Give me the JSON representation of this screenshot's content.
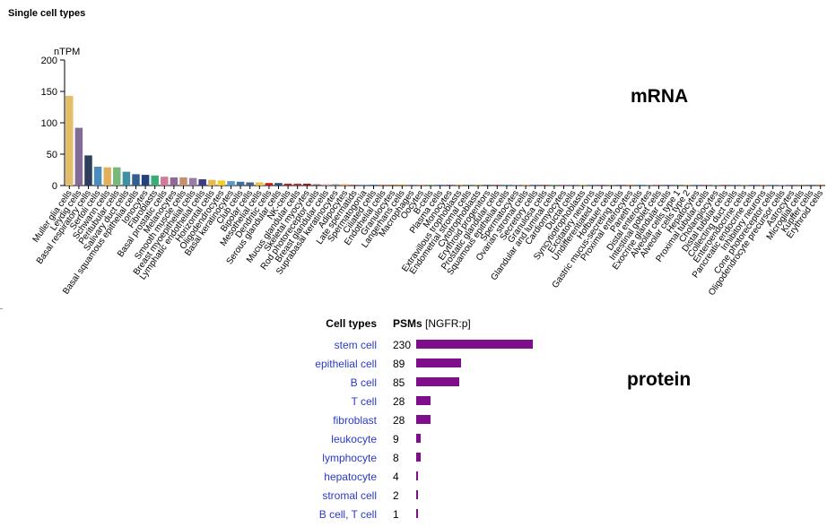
{
  "section_title": "Single cell types",
  "mrna_label": "mRNA",
  "protein_label": "protein",
  "chart_data": {
    "type": "bar",
    "ylabel": "nTPM",
    "ylim": [
      0,
      200
    ],
    "yticks": [
      0,
      50,
      100,
      150,
      200
    ],
    "categories": [
      "Muller glia cells",
      "Leydig cells",
      "Basal respiratory cells",
      "Sertoli cells",
      "Schwann cells",
      "Peritubular cells",
      "Salivary duct cells",
      "Basal squamous epithelial cells",
      "Ionocytes",
      "Fibroblasts",
      "Basal prostatic cells",
      "Melanocytes",
      "Smooth muscle cells",
      "Breast myoepithelial cells",
      "Lymphatic endothelial cells",
      "Horizontal cells",
      "Oligodendrocytes",
      "Basal keratinocytes",
      "Club cells",
      "Bipolar cells",
      "Mesothelial cells",
      "Dendritic cells",
      "Serous glandular cells",
      "NK-cells",
      "Mucus glandular cells",
      "Skeletal myocytes",
      "Rod photoreceptor cells",
      "Breast glandular cells",
      "Suprabasal keratinocytes",
      "Adipocytes",
      "Late spermatids",
      "Spermatogonia",
      "Ciliated cells",
      "Endothelial cells",
      "Granulocytes",
      "Langerhans cells",
      "Macrophages",
      "Oocytes",
      "B-cells",
      "Plasma cells",
      "Monocytes",
      "Extravillous trophoblasts",
      "Endometrial stromal cells",
      "Cytotrophoblasts",
      "Erythroid progenitors",
      "Prostatic glandular cells",
      "Squamous epithelial cells",
      "Spermatocytes",
      "Ovarian stromal cells",
      "Secretory cells",
      "Granulosa cells",
      "Glandular and luminal cells",
      "Cardiomyocytes",
      "Ductal cells",
      "Syncytiotrophoblasts",
      "Excitatory neurons",
      "Undifferentiated cells",
      "Hofbauer cells",
      "Gastric mucus-secreting cells",
      "Proximal enterocytes",
      "Paneth cells",
      "Distal enterocytes",
      "Intestinal goblet cells",
      "Exocrine glandular cells",
      "Alveolar cells type 1",
      "Alveolar cells type 2",
      "Hepatocytes",
      "Proximal tubular cells",
      "Cholangiocytes",
      "Distal tubular cells",
      "Collecting duct cells",
      "Enteroendocrine cells",
      "Pancreatic endocrine cells",
      "Inhibitory neurons",
      "Cone photoreceptor cells",
      "Oligodendrocyte precursor cells",
      "Astrocytes",
      "Microglial cells",
      "Kupffer cells",
      "Erythroid cells"
    ],
    "values": [
      143,
      92,
      48,
      30,
      29,
      29,
      22,
      18,
      17,
      16,
      14,
      13,
      13,
      12,
      10,
      9,
      8,
      7,
      6,
      5,
      5,
      4,
      4,
      3,
      3,
      3,
      2,
      2,
      2,
      2,
      1.5,
      1.5,
      1.5,
      1.5,
      1,
      1,
      1,
      1,
      1,
      1,
      1,
      0.8,
      0.8,
      0.8,
      0.8,
      0.6,
      0.6,
      0.6,
      0.6,
      0.5,
      0.5,
      0.5,
      0.5,
      0.4,
      0.4,
      0.4,
      0.4,
      0.3,
      0.3,
      0.3,
      0.3,
      0.3,
      0.3,
      0.2,
      0.2,
      0.2,
      0.2,
      0.2,
      0.2,
      0.2,
      0.1,
      0.1,
      0.1,
      0.1,
      0.1,
      0.1,
      0.1,
      0.1,
      0.1,
      0.1
    ],
    "colors": [
      "#e3bf6b",
      "#836b98",
      "#2d3e5c",
      "#4a8dbf",
      "#e0b15c",
      "#79b87a",
      "#3f8fa5",
      "#335f8f",
      "#25407b",
      "#39ad79",
      "#cf7a9a",
      "#8f6b93",
      "#c49070",
      "#9a7da7",
      "#3d3d83",
      "#e7b84f",
      "#f0cf22",
      "#5a99c7",
      "#3d6ea2",
      "#47608a",
      "#ebc03a",
      "#c31a1a",
      "#2d4f7a",
      "#b32222",
      "#a8383f",
      "#8e1f24",
      "#7e5a6a",
      "#cf9a9a",
      "#888888",
      "#e19b63",
      "#a06a6a",
      "#7f8fb7",
      "#4f7fb6",
      "#c46c55",
      "#b07040",
      "#c08020",
      "#9070a0",
      "#d08070",
      "#7aa060",
      "#5580b0",
      "#8060a0",
      "#c09060",
      "#709080",
      "#a0a050",
      "#607090",
      "#b06080",
      "#50a0a0",
      "#9090d0",
      "#d0a060",
      "#6080c0",
      "#a07050",
      "#70b070",
      "#c07090",
      "#8080b0",
      "#b0b060",
      "#6090a0",
      "#a06090",
      "#90a070",
      "#7070a0",
      "#c08050",
      "#5090b0",
      "#a0a0a0",
      "#b08070",
      "#8070c0",
      "#60a080",
      "#c0a070",
      "#7090c0",
      "#a08090",
      "#90b0b0",
      "#b07070",
      "#8090a0",
      "#a0b080",
      "#7080b0",
      "#c09080",
      "#60a0b0",
      "#b0a0c0",
      "#9080a0",
      "#a09070",
      "#708090",
      "#c07060"
    ]
  },
  "protein_table": {
    "col_type_label": "Cell types",
    "col_value_label": "PSMs",
    "col_value_sub": "[NGFR:p]",
    "max": 230,
    "bar_color": "#7e0e8c",
    "rows": [
      {
        "type": "stem cell",
        "value": 230
      },
      {
        "type": "epithelial cell",
        "value": 89
      },
      {
        "type": "B cell",
        "value": 85
      },
      {
        "type": "T cell",
        "value": 28
      },
      {
        "type": "fibroblast",
        "value": 28
      },
      {
        "type": "leukocyte",
        "value": 9
      },
      {
        "type": "lymphocyte",
        "value": 8
      },
      {
        "type": "hepatocyte",
        "value": 4
      },
      {
        "type": "stromal cell",
        "value": 2
      },
      {
        "type": "B cell, T cell",
        "value": 1
      }
    ]
  }
}
